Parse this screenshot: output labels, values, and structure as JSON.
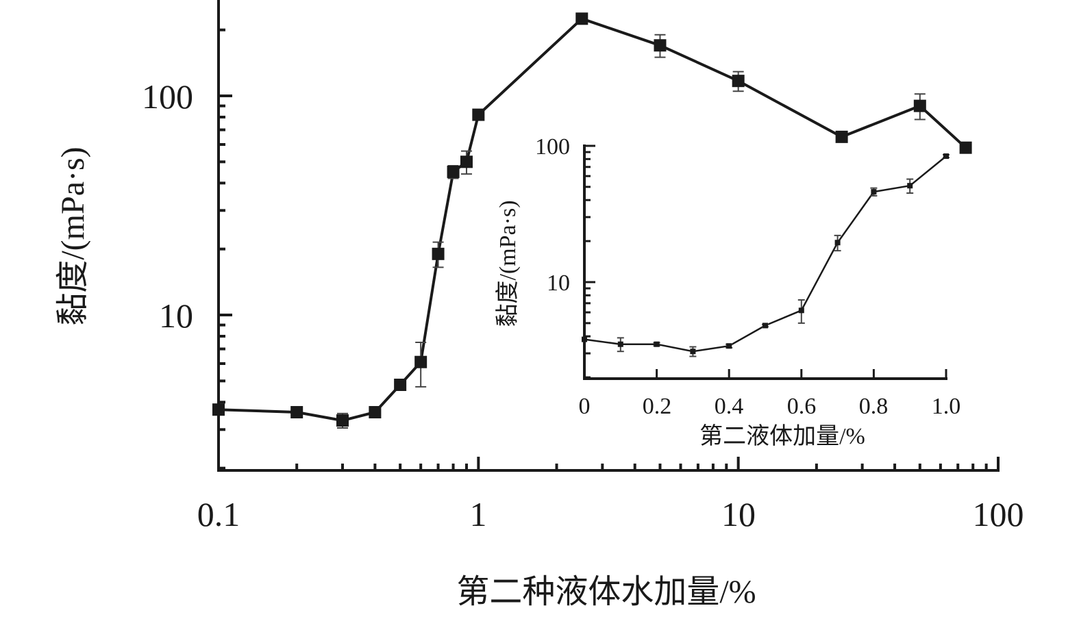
{
  "chart_data": [
    {
      "type": "line",
      "title": "",
      "xlabel": "第二种液体水加量/%",
      "ylabel": "黏度/(mPa·s)",
      "x_scale": "log",
      "y_scale": "log",
      "xlim": [
        0.1,
        100
      ],
      "ylim": [
        2,
        300
      ],
      "x_ticks": [
        {
          "value": 0.1,
          "label": "0.1"
        },
        {
          "value": 1,
          "label": "1"
        },
        {
          "value": 10,
          "label": "10"
        },
        {
          "value": 100,
          "label": "100"
        }
      ],
      "y_ticks": [
        {
          "value": 10,
          "label": "10"
        },
        {
          "value": 100,
          "label": "100"
        }
      ],
      "grid": false,
      "marker": "filled-square",
      "line_color": "#1a1a1a",
      "points": [
        {
          "x": 0.1,
          "y": 3.7,
          "err": 0
        },
        {
          "x": 0.2,
          "y": 3.6,
          "err": 0.1
        },
        {
          "x": 0.3,
          "y": 3.3,
          "err": 0.25
        },
        {
          "x": 0.4,
          "y": 3.6,
          "err": 0.1
        },
        {
          "x": 0.5,
          "y": 4.8,
          "err": 0.15
        },
        {
          "x": 0.6,
          "y": 6.1,
          "err": 1.4
        },
        {
          "x": 0.7,
          "y": 19,
          "err": 2.5
        },
        {
          "x": 0.8,
          "y": 45,
          "err": 3
        },
        {
          "x": 0.9,
          "y": 50,
          "err": 6
        },
        {
          "x": 1.0,
          "y": 82,
          "err": 3
        },
        {
          "x": 2.5,
          "y": 225,
          "err": 5
        },
        {
          "x": 5,
          "y": 170,
          "err": 20
        },
        {
          "x": 10,
          "y": 117,
          "err": 12
        },
        {
          "x": 25,
          "y": 65,
          "err": 3
        },
        {
          "x": 50,
          "y": 90,
          "err": 12
        },
        {
          "x": 75,
          "y": 58,
          "err": 2
        }
      ]
    },
    {
      "type": "line",
      "title": "",
      "xlabel": "第二液体加量/%",
      "ylabel": "黏度/(mPa·s)",
      "x_scale": "linear",
      "y_scale": "log",
      "xlim": [
        0,
        1.0
      ],
      "ylim": [
        2,
        100
      ],
      "x_ticks": [
        {
          "value": 0,
          "label": "0"
        },
        {
          "value": 0.2,
          "label": "0.2"
        },
        {
          "value": 0.4,
          "label": "0.4"
        },
        {
          "value": 0.6,
          "label": "0.6"
        },
        {
          "value": 0.8,
          "label": "0.8"
        },
        {
          "value": 1.0,
          "label": "1.0"
        }
      ],
      "y_ticks": [
        {
          "value": 10,
          "label": "10"
        },
        {
          "value": 100,
          "label": "100"
        }
      ],
      "grid": false,
      "marker": "filled-square",
      "line_color": "#1a1a1a",
      "points": [
        {
          "x": 0,
          "y": 3.8,
          "err": 0
        },
        {
          "x": 0.1,
          "y": 3.5,
          "err": 0.4
        },
        {
          "x": 0.2,
          "y": 3.5,
          "err": 0.1
        },
        {
          "x": 0.3,
          "y": 3.1,
          "err": 0.25
        },
        {
          "x": 0.4,
          "y": 3.4,
          "err": 0.1
        },
        {
          "x": 0.5,
          "y": 4.8,
          "err": 0.1
        },
        {
          "x": 0.6,
          "y": 6.2,
          "err": 1.2
        },
        {
          "x": 0.7,
          "y": 19.5,
          "err": 2.5
        },
        {
          "x": 0.8,
          "y": 46,
          "err": 3
        },
        {
          "x": 0.9,
          "y": 51,
          "err": 6
        },
        {
          "x": 1.0,
          "y": 84,
          "err": 2
        }
      ]
    }
  ]
}
